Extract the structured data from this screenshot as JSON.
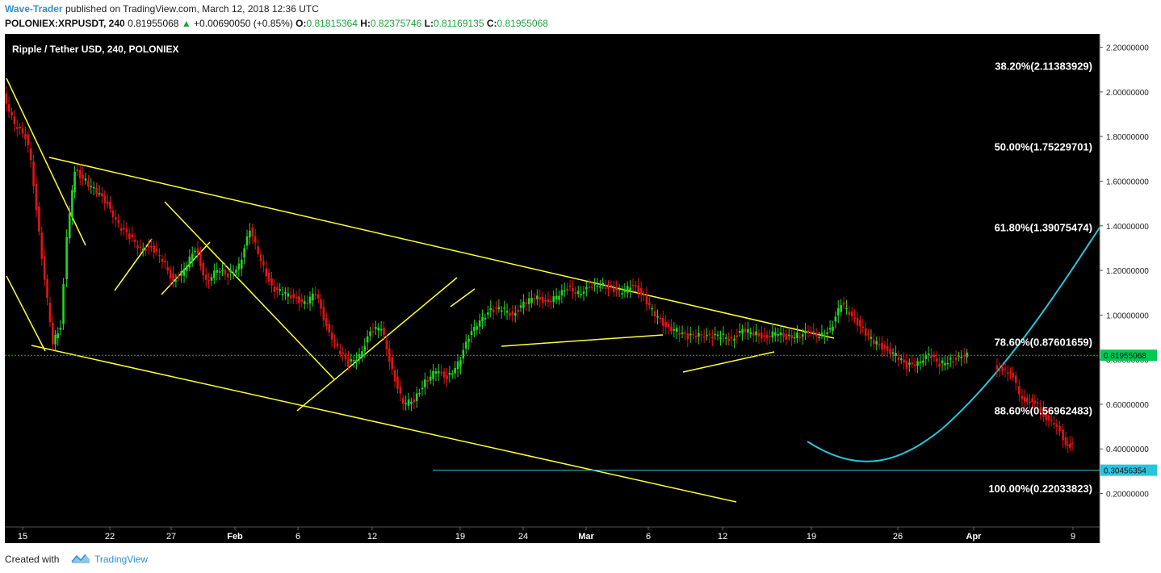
{
  "header": {
    "author": "Wave-Trader",
    "published": "published on TradingView.com, March 12, 2018 12:36 UTC",
    "symbol": "POLONIEX:XRPUSDT, 240",
    "last": "0.81955068",
    "change": "+0.00690050 (+0.85%)",
    "o_label": "O:",
    "o_value": "0.81815364",
    "h_label": "H:",
    "h_value": "0.82375746",
    "l_label": "L:",
    "l_value": "0.81169135",
    "c_label": "C:",
    "c_value": "0.81955068"
  },
  "chart_data": {
    "type": "candlestick",
    "title": "Ripple / Tether USD, 240, POLONIEX",
    "y_axis": {
      "min": 0.05,
      "max": 2.26,
      "ticks": [
        "2.20000000",
        "2.00000000",
        "1.80000000",
        "1.60000000",
        "1.40000000",
        "1.20000000",
        "1.00000000",
        "0.80000000",
        "0.60000000",
        "0.40000000",
        "0.20000000"
      ],
      "tick_values": [
        2.2,
        2.0,
        1.8,
        1.6,
        1.4,
        1.2,
        1.0,
        0.8,
        0.6,
        0.4,
        0.2
      ]
    },
    "x_axis": {
      "labels": [
        "15",
        "22",
        "27",
        "Feb",
        "6",
        "12",
        "19",
        "24",
        "Mar",
        "6",
        "12",
        "19",
        "26",
        "Apr",
        "9"
      ],
      "bold": [
        false,
        false,
        false,
        true,
        false,
        false,
        false,
        false,
        true,
        false,
        false,
        false,
        false,
        true,
        false
      ]
    },
    "price_marker": {
      "label": "0.81955068",
      "value": 0.81955068,
      "color": "#00c853"
    },
    "target_marker": {
      "label": "0.30456354",
      "value": 0.30456354,
      "color": "#26c6da"
    },
    "fib_levels": [
      {
        "label": "38.20%(2.11383929)",
        "value": 2.11383929
      },
      {
        "label": "50.00%(1.75229701)",
        "value": 1.75229701
      },
      {
        "label": "61.80%(1.39075474)",
        "value": 1.39075474
      },
      {
        "label": "78.60%(0.87601659)",
        "value": 0.87601659
      },
      {
        "label": "88.60%(0.56962483)",
        "value": 0.56962483
      },
      {
        "label": "100.00%(0.22033823)",
        "value": 0.22033823
      }
    ],
    "price_path": [
      [
        0,
        1.99
      ],
      [
        0.01,
        1.85
      ],
      [
        0.02,
        1.8
      ],
      [
        0.025,
        1.7
      ],
      [
        0.035,
        1.25
      ],
      [
        0.045,
        0.88
      ],
      [
        0.052,
        0.95
      ],
      [
        0.058,
        1.35
      ],
      [
        0.065,
        1.65
      ],
      [
        0.075,
        1.6
      ],
      [
        0.085,
        1.55
      ],
      [
        0.095,
        1.5
      ],
      [
        0.105,
        1.4
      ],
      [
        0.115,
        1.35
      ],
      [
        0.125,
        1.3
      ],
      [
        0.135,
        1.3
      ],
      [
        0.145,
        1.25
      ],
      [
        0.155,
        1.15
      ],
      [
        0.165,
        1.2
      ],
      [
        0.175,
        1.3
      ],
      [
        0.185,
        1.15
      ],
      [
        0.195,
        1.2
      ],
      [
        0.205,
        1.18
      ],
      [
        0.215,
        1.22
      ],
      [
        0.225,
        1.38
      ],
      [
        0.235,
        1.25
      ],
      [
        0.245,
        1.12
      ],
      [
        0.255,
        1.1
      ],
      [
        0.265,
        1.08
      ],
      [
        0.275,
        1.05
      ],
      [
        0.285,
        1.1
      ],
      [
        0.295,
        0.95
      ],
      [
        0.305,
        0.85
      ],
      [
        0.315,
        0.78
      ],
      [
        0.325,
        0.82
      ],
      [
        0.335,
        0.92
      ],
      [
        0.345,
        0.95
      ],
      [
        0.355,
        0.75
      ],
      [
        0.365,
        0.6
      ],
      [
        0.375,
        0.62
      ],
      [
        0.385,
        0.7
      ],
      [
        0.395,
        0.75
      ],
      [
        0.405,
        0.72
      ],
      [
        0.415,
        0.78
      ],
      [
        0.425,
        0.9
      ],
      [
        0.435,
        0.98
      ],
      [
        0.445,
        1.02
      ],
      [
        0.455,
        1.03
      ],
      [
        0.465,
        1.0
      ],
      [
        0.475,
        1.05
      ],
      [
        0.485,
        1.08
      ],
      [
        0.495,
        1.06
      ],
      [
        0.505,
        1.08
      ],
      [
        0.515,
        1.12
      ],
      [
        0.525,
        1.1
      ],
      [
        0.535,
        1.12
      ],
      [
        0.545,
        1.14
      ],
      [
        0.555,
        1.12
      ],
      [
        0.565,
        1.1
      ],
      [
        0.575,
        1.14
      ],
      [
        0.585,
        1.08
      ],
      [
        0.595,
        1.0
      ],
      [
        0.605,
        0.95
      ],
      [
        0.615,
        0.93
      ],
      [
        0.625,
        0.9
      ],
      [
        0.635,
        0.92
      ],
      [
        0.645,
        0.9
      ],
      [
        0.655,
        0.91
      ],
      [
        0.665,
        0.89
      ],
      [
        0.675,
        0.93
      ],
      [
        0.685,
        0.92
      ],
      [
        0.695,
        0.9
      ],
      [
        0.705,
        0.92
      ],
      [
        0.715,
        0.9
      ],
      [
        0.725,
        0.91
      ],
      [
        0.735,
        0.92
      ],
      [
        0.745,
        0.91
      ],
      [
        0.755,
        0.93
      ],
      [
        0.765,
        1.05
      ],
      [
        0.775,
        1.0
      ],
      [
        0.785,
        0.93
      ],
      [
        0.795,
        0.88
      ],
      [
        0.805,
        0.85
      ],
      [
        0.815,
        0.82
      ],
      [
        0.825,
        0.77
      ],
      [
        0.835,
        0.79
      ],
      [
        0.845,
        0.82
      ],
      [
        0.855,
        0.78
      ],
      [
        0.865,
        0.8
      ],
      [
        0.875,
        0.81
      ],
      [
        0.88,
        0.82
      ]
    ],
    "projection": [
      [
        0.905,
        0.77
      ],
      [
        0.915,
        0.75
      ],
      [
        0.922,
        0.72
      ],
      [
        0.928,
        0.65
      ],
      [
        0.935,
        0.6
      ],
      [
        0.942,
        0.62
      ],
      [
        0.95,
        0.55
      ],
      [
        0.957,
        0.52
      ],
      [
        0.962,
        0.5
      ],
      [
        0.968,
        0.45
      ],
      [
        0.972,
        0.41
      ],
      [
        0.976,
        0.42
      ]
    ],
    "up_color": "#26d426",
    "down_color": "#e01515",
    "trendline_color": "#ffff33",
    "curve_color": "#26c6da"
  },
  "footer": {
    "created_with": "Created with",
    "brand": "TradingView"
  }
}
